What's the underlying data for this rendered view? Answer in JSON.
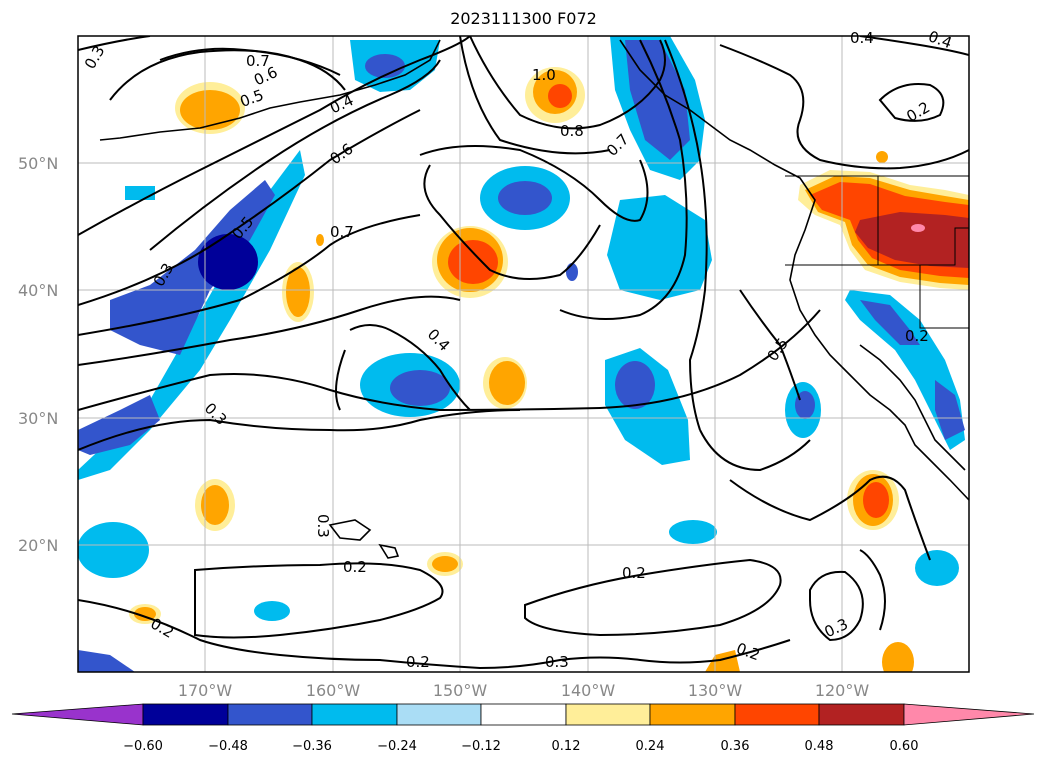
{
  "title": "2023111300 F072",
  "map": {
    "lat_labels": [
      "50°N",
      "40°N",
      "30°N",
      "20°N"
    ],
    "lon_labels": [
      "170°W",
      "160°W",
      "150°W",
      "140°W",
      "130°W",
      "120°W"
    ],
    "contour_labels": [
      "0.3",
      "0.7",
      "0.6",
      "0.5",
      "0.4",
      "0.6",
      "0.5",
      "0.7",
      "0.3",
      "1.0",
      "0.8",
      "0.7",
      "0.4",
      "0.4",
      "0.2",
      "0.5",
      "0.2",
      "0.4",
      "0.3",
      "0.3",
      "0.2",
      "0.2",
      "0.2",
      "0.2",
      "0.3",
      "0.2",
      "0.3"
    ]
  },
  "colorbar": {
    "ticks": [
      "−0.60",
      "−0.48",
      "−0.36",
      "−0.24",
      "−0.12",
      "0.12",
      "0.24",
      "0.36",
      "0.48",
      "0.60"
    ],
    "colors": {
      "lt_neg060": "#9933cc",
      "neg060_neg048": "#000099",
      "neg048_neg036": "#3355cc",
      "neg036_neg024": "#00bbee",
      "neg024_neg012": "#aaddf5",
      "neg012_012": "#ffffff",
      "p012_p024": "#ffee99",
      "p024_p036": "#ffa500",
      "p036_p048": "#ff4500",
      "p048_p060": "#b22222",
      "gt_p060": "#ff88aa"
    }
  }
}
